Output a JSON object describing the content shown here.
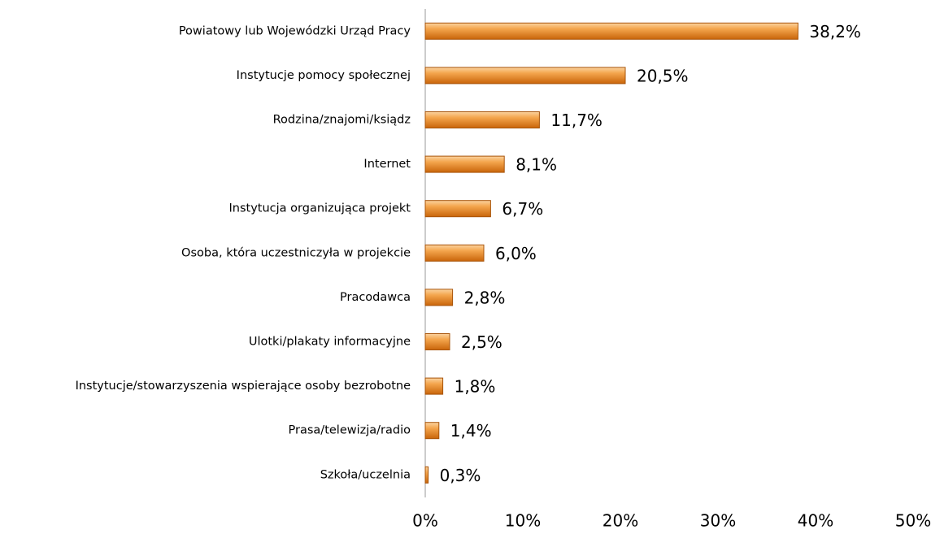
{
  "chart_data": {
    "type": "bar",
    "orientation": "horizontal",
    "categories": [
      "Powiatowy lub Wojewódzki Urząd Pracy",
      "Instytucje pomocy społecznej",
      "Rodzina/znajomi/ksiądz",
      "Internet",
      "Instytucja organizująca projekt",
      "Osoba, która uczestniczyła w projekcie",
      "Pracodawca",
      "Ulotki/plakaty informacyjne",
      "Instytucje/stowarzyszenia wspierające osoby bezrobotne",
      "Prasa/telewizja/radio",
      "Szkoła/uczelnia"
    ],
    "values": [
      38.2,
      20.5,
      11.7,
      8.1,
      6.7,
      6.0,
      2.8,
      2.5,
      1.8,
      1.4,
      0.3
    ],
    "value_labels": [
      "38,2%",
      "20,5%",
      "11,7%",
      "8,1%",
      "6,7%",
      "6,0%",
      "2,8%",
      "2,5%",
      "1,8%",
      "1,4%",
      "0,3%"
    ],
    "color": "#e8851c",
    "xlim": [
      0,
      50
    ],
    "xticks": [
      {
        "value": 0,
        "label": "0%"
      },
      {
        "value": 10,
        "label": "10%"
      },
      {
        "value": 20,
        "label": "20%"
      },
      {
        "value": 30,
        "label": "30%"
      },
      {
        "value": 40,
        "label": "40%"
      },
      {
        "value": 50,
        "label": "50%"
      }
    ],
    "grid": false
  }
}
